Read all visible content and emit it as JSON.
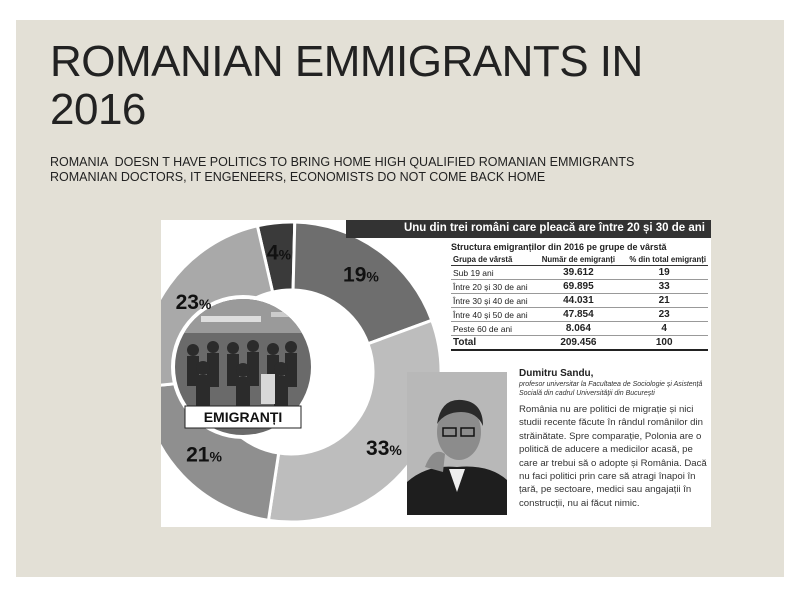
{
  "slide": {
    "title": "ROMANIAN EMMIGRANTS IN 2016",
    "subtitle_line1": "ROMANIA  DOESN T HAVE POLITICS TO BRING HOME HIGH QUALIFIED ROMANIAN EMMIGRANTS",
    "subtitle_line2": "ROMANIAN DOCTORS, IT ENGENEERS, ECONOMISTS DO NOT COME BACK HOME"
  },
  "figure": {
    "banner": "Unu din trei români care pleacă are între 20 și 30 de ani",
    "table_title": "Structura emigranților din 2016 pe grupe de vârstă",
    "headers": [
      "Grupa de vârstă",
      "Număr de emigranți",
      "% din total emigranți"
    ],
    "rows": [
      {
        "group": "Sub 19 ani",
        "count": "39.612",
        "pct": "19"
      },
      {
        "group": "Între 20 și 30 de ani",
        "count": "69.895",
        "pct": "33"
      },
      {
        "group": "Între 30 și 40 de ani",
        "count": "44.031",
        "pct": "21"
      },
      {
        "group": "Între 40 și 50 de ani",
        "count": "47.854",
        "pct": "23"
      },
      {
        "group": "Peste 60 de ani",
        "count": "8.064",
        "pct": "4"
      }
    ],
    "total": {
      "group": "Total",
      "count": "209.456",
      "pct": "100"
    },
    "donut_label": "EMIGRANȚI",
    "donut_slices": [
      {
        "label": "4",
        "value": 4,
        "color": "#3a3a3a"
      },
      {
        "label": "19",
        "value": 19,
        "color": "#6e6e6e"
      },
      {
        "label": "33",
        "value": 33,
        "color": "#bdbdbd"
      },
      {
        "label": "21",
        "value": 21,
        "color": "#8f8f8f"
      },
      {
        "label": "23",
        "value": 23,
        "color": "#a9a9a9"
      }
    ],
    "percent_sign": "%",
    "author": "Dumitru Sandu,",
    "affiliation": "profesor universitar la Facultatea de Sociologie și Asistență Socială din cadrul Universității din București",
    "quote": "România nu are politici de migrație și nici studii recente făcute în rândul românilor din străinătate. Spre comparație, Polonia are o politică de aducere a medicilor acasă, pe care ar trebui să o adopte și România. Dacă nu faci politici prin care să atragi înapoi în țară, pe sectoare, medici sau angajații în construcții, nu ai făcut nimic."
  }
}
